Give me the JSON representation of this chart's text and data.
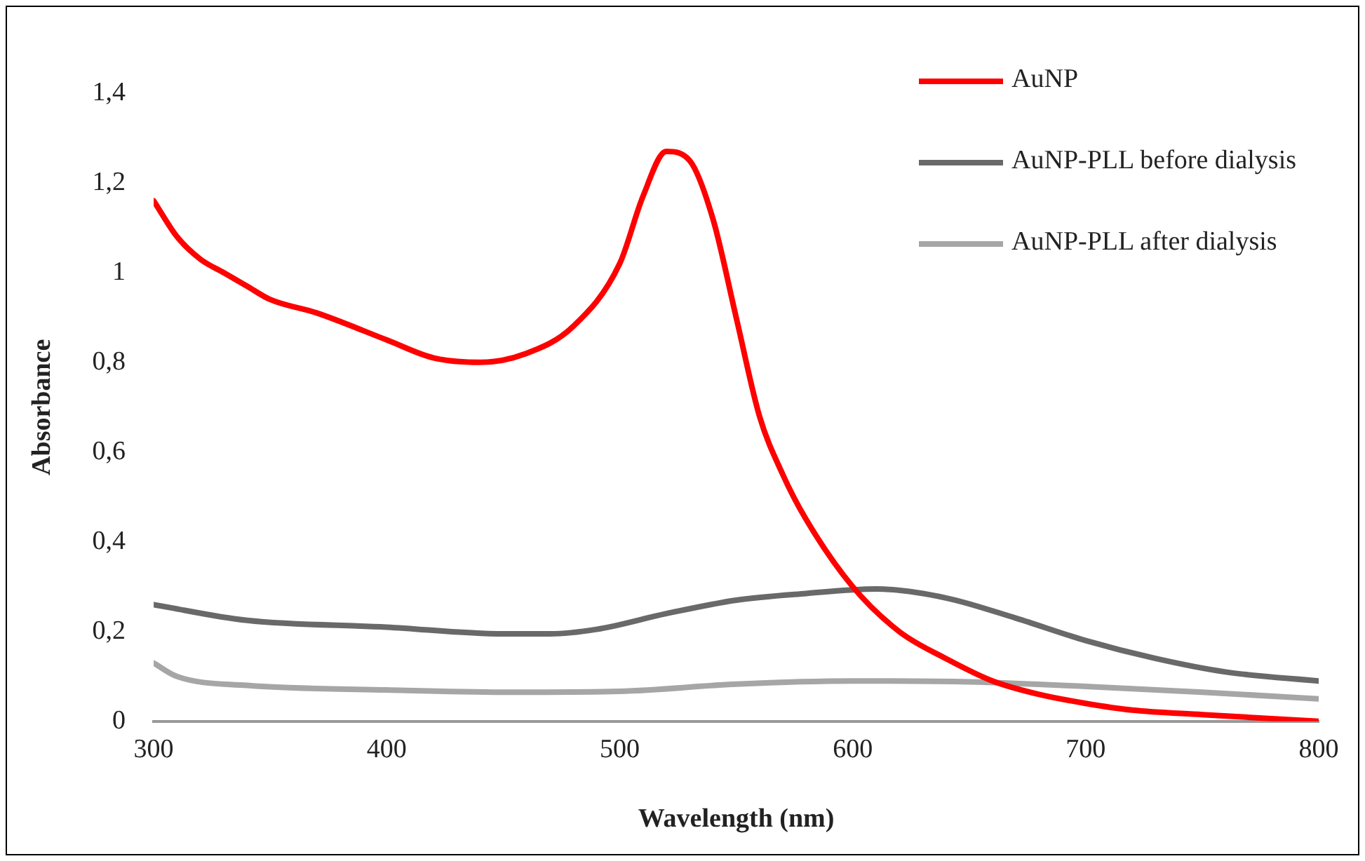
{
  "chart_data": {
    "type": "line",
    "xlabel": "Wavelength (nm)",
    "ylabel": "Absorbance",
    "xlim": [
      300,
      800
    ],
    "xticks": [
      300,
      400,
      500,
      600,
      700,
      800
    ],
    "ylim": [
      0,
      1.4
    ],
    "yticks": [
      0,
      {
        "value": 0.2,
        "label": "0,2"
      },
      {
        "value": 0.4,
        "label": "0,4"
      },
      {
        "value": 0.6,
        "label": "0,6"
      },
      {
        "value": 0.8,
        "label": "0,8"
      },
      1,
      {
        "value": 1.2,
        "label": "1,2"
      },
      {
        "value": 1.4,
        "label": "1,4"
      }
    ],
    "grid": false,
    "legend": "top right",
    "marker": "none",
    "line_style": "solid",
    "series": [
      {
        "name": "AuNP",
        "color": "#ff0000",
        "x": [
          300,
          310,
          320,
          330,
          340,
          350,
          370,
          400,
          420,
          440,
          460,
          480,
          500,
          510,
          520,
          530,
          540,
          550,
          560,
          570,
          580,
          600,
          620,
          640,
          660,
          680,
          700,
          720,
          750,
          800
        ],
        "values": [
          1.16,
          1.08,
          1.03,
          1.0,
          0.97,
          0.94,
          0.91,
          0.85,
          0.81,
          0.8,
          0.82,
          0.88,
          1.02,
          1.17,
          1.27,
          1.25,
          1.12,
          0.9,
          0.68,
          0.55,
          0.45,
          0.3,
          0.2,
          0.14,
          0.09,
          0.06,
          0.04,
          0.025,
          0.015,
          0.0
        ]
      },
      {
        "name": "AuNP-PLL before dialysis",
        "color": "#696969",
        "x": [
          300,
          340,
          400,
          450,
          470,
          490,
          520,
          550,
          580,
          610,
          640,
          670,
          700,
          730,
          760,
          800
        ],
        "values": [
          0.26,
          0.225,
          0.21,
          0.195,
          0.195,
          0.205,
          0.24,
          0.27,
          0.285,
          0.295,
          0.275,
          0.23,
          0.18,
          0.14,
          0.11,
          0.09
        ]
      },
      {
        "name": "AuNP-PLL after dialysis",
        "color": "#a6a6a6",
        "x": [
          300,
          310,
          340,
          400,
          450,
          500,
          550,
          600,
          650,
          700,
          750,
          800
        ],
        "values": [
          0.13,
          0.1,
          0.08,
          0.07,
          0.065,
          0.067,
          0.083,
          0.09,
          0.088,
          0.078,
          0.065,
          0.05
        ]
      }
    ]
  }
}
